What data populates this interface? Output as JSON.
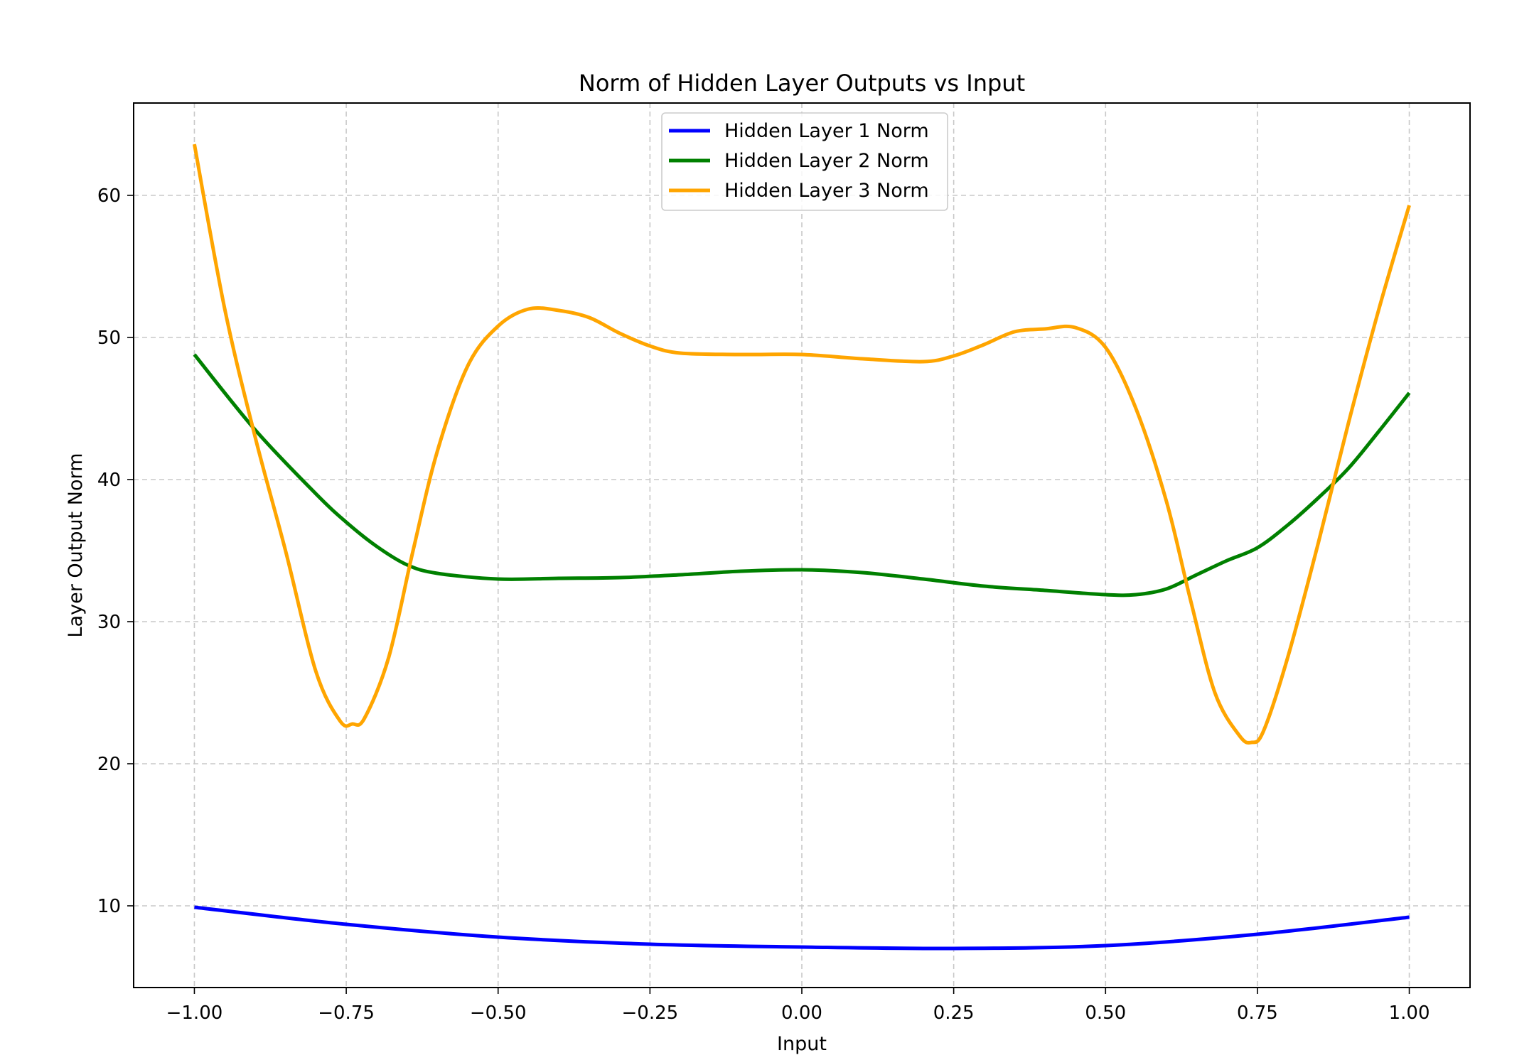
{
  "chart_data": {
    "type": "line",
    "title": "Norm of Hidden Layer Outputs vs Input",
    "xlabel": "Input",
    "ylabel": "Layer Output Norm",
    "xlim": [
      -1.1,
      1.1
    ],
    "ylim": [
      4.25,
      66.5
    ],
    "grid": true,
    "legend_position": "top-center",
    "x_ticks": [
      -1.0,
      -0.75,
      -0.5,
      -0.25,
      0.0,
      0.25,
      0.5,
      0.75,
      1.0
    ],
    "x_tick_labels": [
      "−1.00",
      "−0.75",
      "−0.50",
      "−0.25",
      "0.00",
      "0.25",
      "0.50",
      "0.75",
      "1.00"
    ],
    "y_ticks": [
      10,
      20,
      30,
      40,
      50,
      60
    ],
    "y_tick_labels": [
      "10",
      "20",
      "30",
      "40",
      "50",
      "60"
    ],
    "series": [
      {
        "name": "Hidden Layer 1 Norm",
        "color": "#0000ff",
        "x": [
          -1.0,
          -0.75,
          -0.5,
          -0.25,
          0.0,
          0.25,
          0.5,
          0.75,
          1.0
        ],
        "y": [
          9.9,
          8.7,
          7.8,
          7.3,
          7.1,
          7.0,
          7.2,
          8.0,
          9.2
        ]
      },
      {
        "name": "Hidden Layer 2 Norm",
        "color": "#008000",
        "x": [
          -1.0,
          -0.9,
          -0.8,
          -0.75,
          -0.7,
          -0.65,
          -0.6,
          -0.5,
          -0.4,
          -0.3,
          -0.2,
          -0.1,
          0.0,
          0.1,
          0.2,
          0.3,
          0.4,
          0.5,
          0.55,
          0.6,
          0.65,
          0.7,
          0.75,
          0.8,
          0.85,
          0.9,
          0.95,
          1.0
        ],
        "y": [
          48.8,
          43.5,
          39.0,
          37.0,
          35.3,
          34.0,
          33.4,
          33.0,
          33.05,
          33.1,
          33.3,
          33.55,
          33.65,
          33.45,
          33.0,
          32.5,
          32.2,
          31.9,
          31.9,
          32.3,
          33.3,
          34.3,
          35.2,
          36.8,
          38.7,
          40.8,
          43.4,
          46.1
        ]
      },
      {
        "name": "Hidden Layer 3 Norm",
        "color": "#ffa500",
        "x": [
          -1.0,
          -0.95,
          -0.9,
          -0.85,
          -0.8,
          -0.76,
          -0.74,
          -0.72,
          -0.68,
          -0.64,
          -0.6,
          -0.55,
          -0.5,
          -0.45,
          -0.4,
          -0.35,
          -0.3,
          -0.25,
          -0.2,
          -0.1,
          0.0,
          0.1,
          0.2,
          0.25,
          0.3,
          0.35,
          0.4,
          0.45,
          0.5,
          0.55,
          0.6,
          0.64,
          0.68,
          0.72,
          0.74,
          0.76,
          0.8,
          0.85,
          0.9,
          0.95,
          1.0
        ],
        "y": [
          63.6,
          52.0,
          43.0,
          35.0,
          26.5,
          23.0,
          22.8,
          23.2,
          27.5,
          35.0,
          42.0,
          48.0,
          50.8,
          52.0,
          51.9,
          51.4,
          50.3,
          49.4,
          48.9,
          48.8,
          48.8,
          48.5,
          48.3,
          48.7,
          49.5,
          50.4,
          50.6,
          50.7,
          49.3,
          45.0,
          38.5,
          31.5,
          25.0,
          22.0,
          21.5,
          22.3,
          27.5,
          35.5,
          44.0,
          52.0,
          59.3
        ]
      }
    ]
  }
}
